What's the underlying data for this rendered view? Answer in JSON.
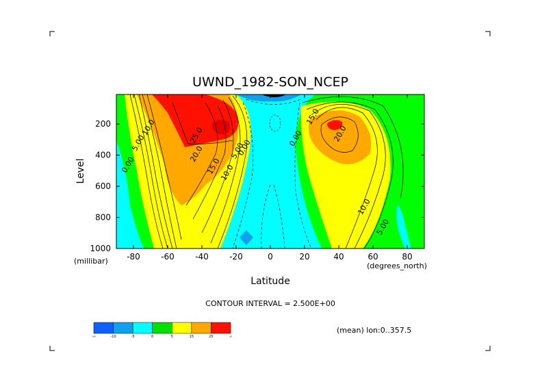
{
  "chart_data": {
    "type": "heatmap",
    "title": "UWND_1982-SON_NCEP",
    "xlabel": "Latitude",
    "ylabel": "Level",
    "x_unit": "(degrees_north)",
    "y_unit": "(millibar)",
    "xlim": [
      -90,
      90
    ],
    "ylim": [
      1000,
      10
    ],
    "xticks": [
      "-80",
      "-60",
      "-40",
      "-20",
      "0",
      "20",
      "40",
      "60",
      "80"
    ],
    "yticks": [
      "200",
      "400",
      "600",
      "800",
      "1000"
    ],
    "contour_interval_text": "CONTOUR INTERVAL = 2.500E+00",
    "subtitle": "(mean) lon:0..357.5",
    "colorbar": {
      "labels": [
        "-∞",
        "-10",
        "-5",
        "0",
        "5",
        "15",
        "25",
        "∞"
      ],
      "colors": [
        "#1060ff",
        "#11a0ee",
        "#00ffff",
        "#00e000",
        "#ffff00",
        "#ffa800",
        "#ff1000"
      ]
    },
    "contour_labels": [
      {
        "text": "10.0",
        "x": -70,
        "y": 230
      },
      {
        "text": "5.00",
        "x": -76,
        "y": 330
      },
      {
        "text": "0.00",
        "x": -82,
        "y": 470
      },
      {
        "text": "25.0",
        "x": -42,
        "y": 280
      },
      {
        "text": "20.0",
        "x": -42,
        "y": 400
      },
      {
        "text": "15.0",
        "x": -32,
        "y": 480
      },
      {
        "text": "10.0",
        "x": -24,
        "y": 520
      },
      {
        "text": "5.00",
        "x": -18,
        "y": 380
      },
      {
        "text": "0.00",
        "x": -14,
        "y": 360
      },
      {
        "text": "0.00",
        "x": 16,
        "y": 300
      },
      {
        "text": "15.0",
        "x": 26,
        "y": 160
      },
      {
        "text": "20.0",
        "x": 42,
        "y": 270
      },
      {
        "text": "10.0",
        "x": 56,
        "y": 740
      },
      {
        "text": "5.00",
        "x": 67,
        "y": 870
      }
    ],
    "wind_maxima": [
      {
        "x": -30,
        "y": 200
      },
      {
        "x": 38,
        "y": 180
      }
    ]
  }
}
